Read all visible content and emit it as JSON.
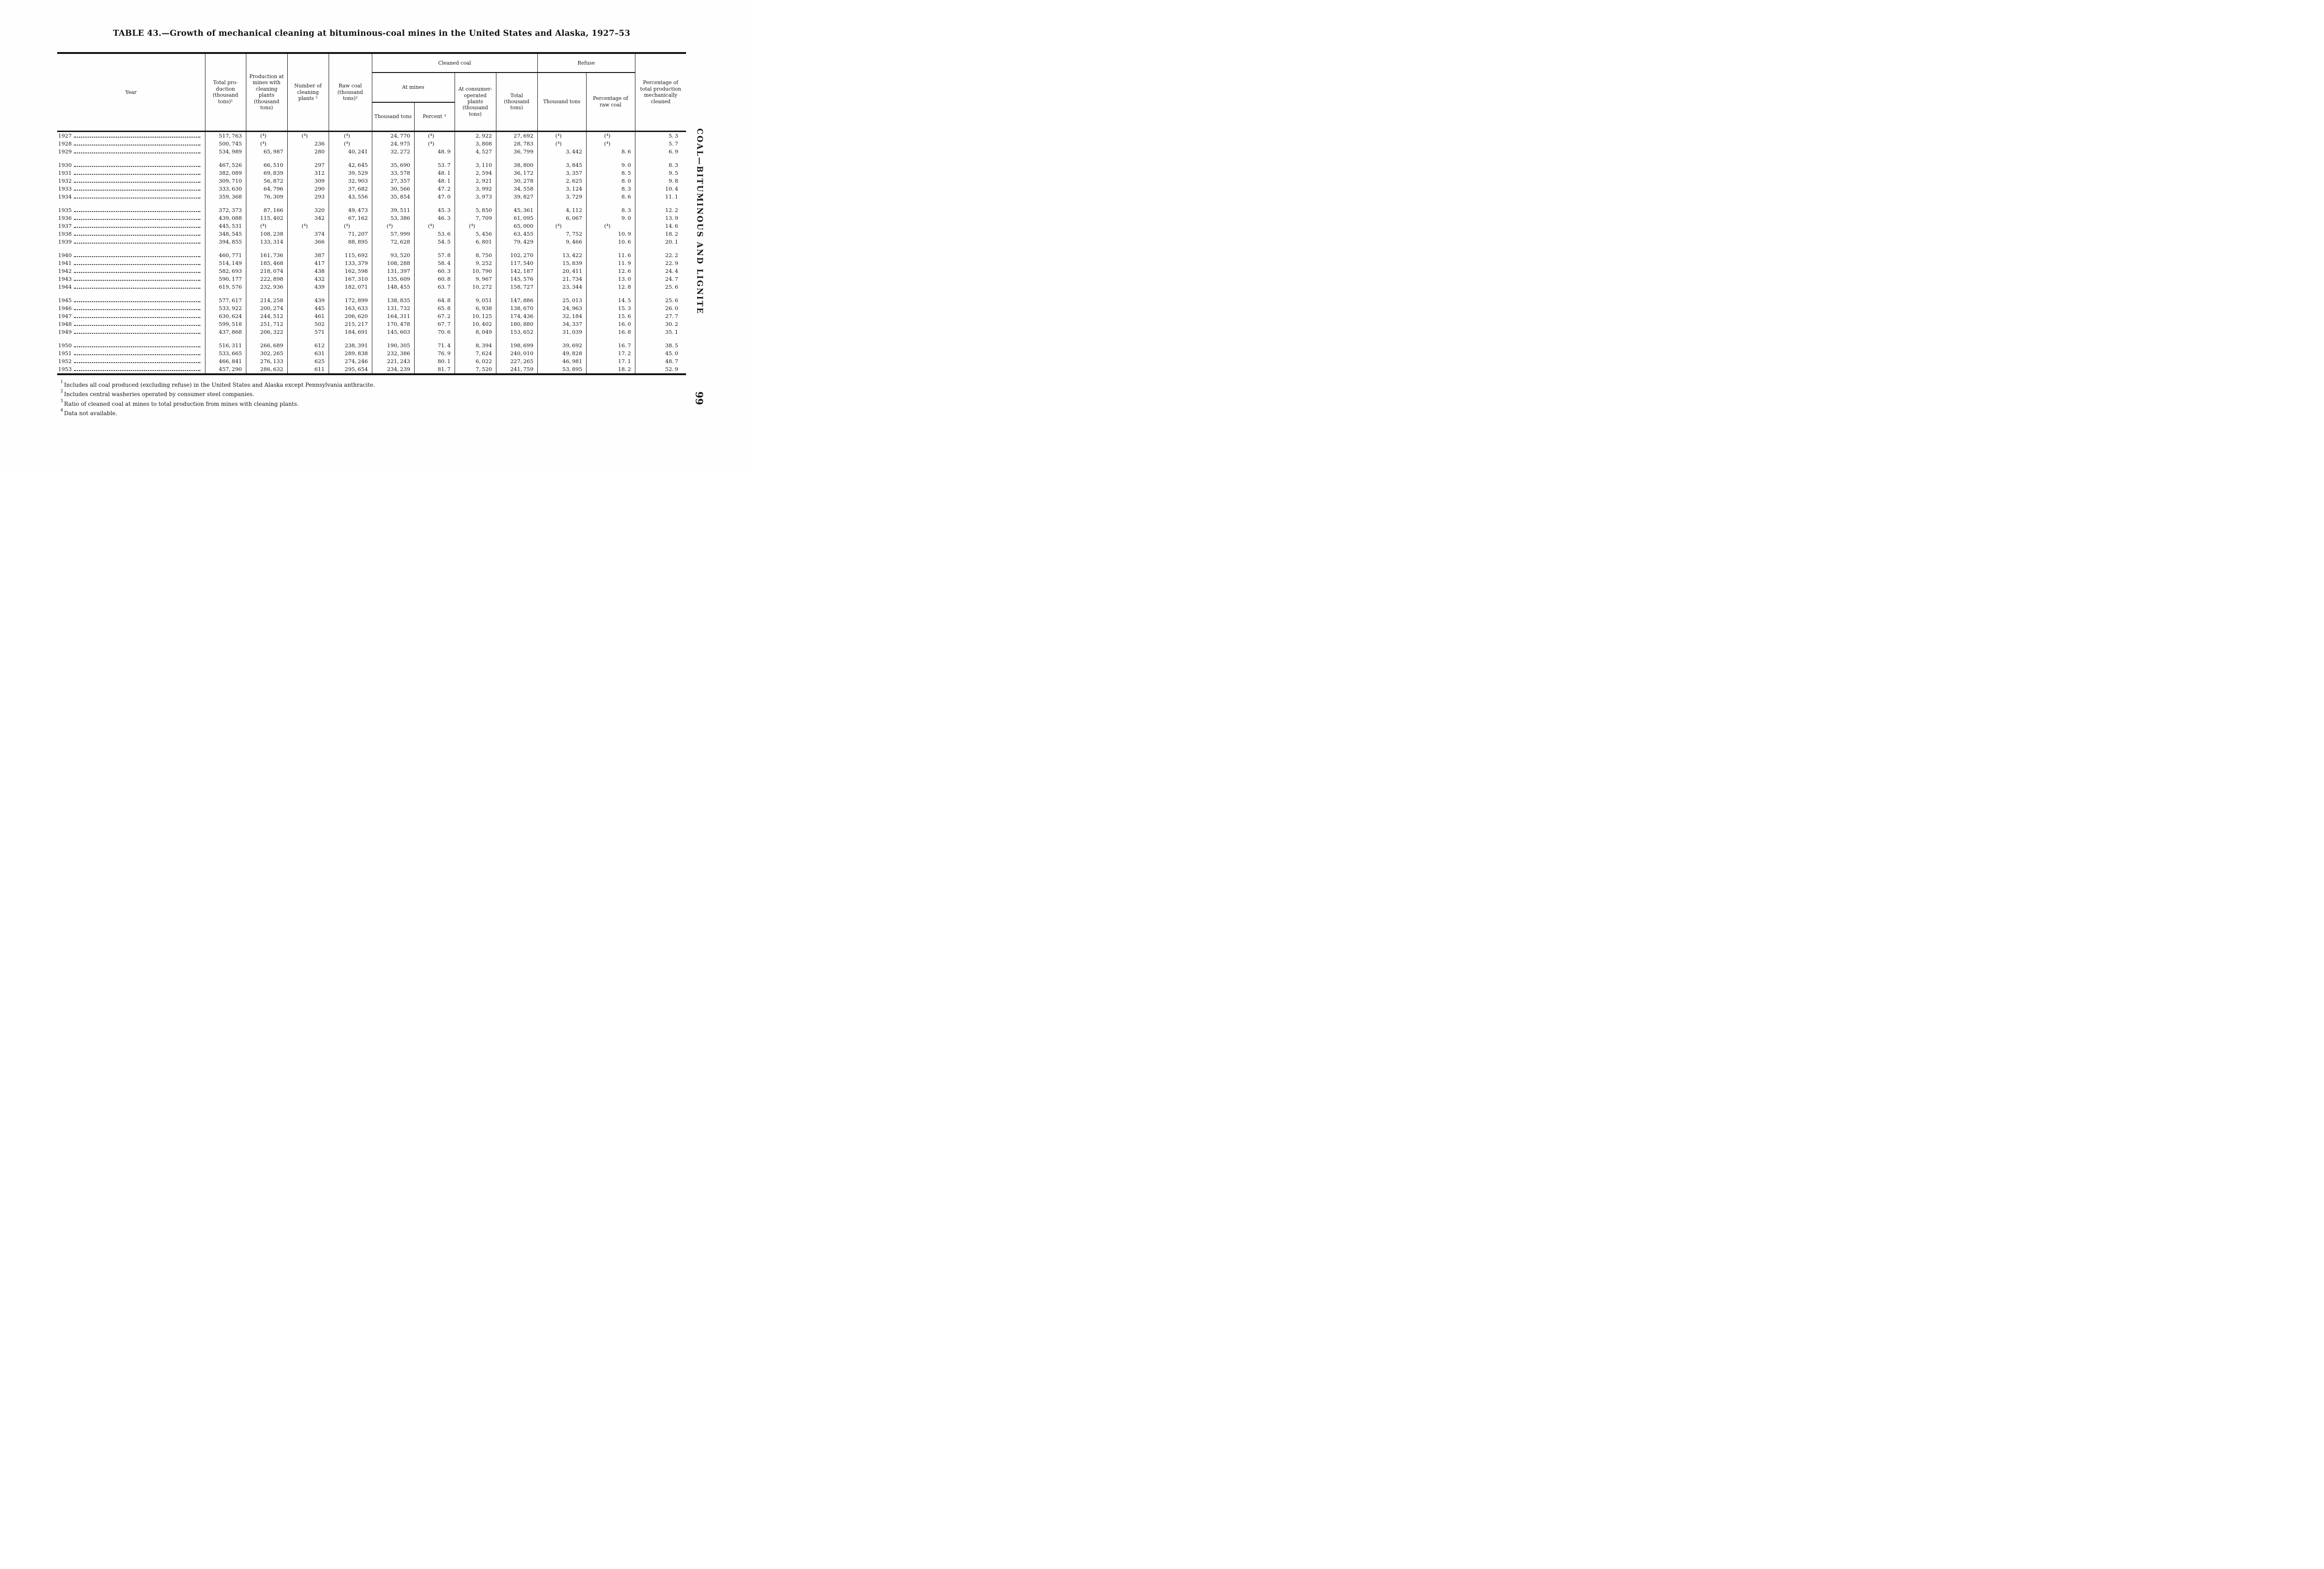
{
  "page": {
    "title": "TABLE 43.—Growth of mechanical cleaning at bituminous-coal mines in the United States and Alaska, 1927–53",
    "side_label": "COAL—BITUMINOUS AND LIGNITE",
    "page_number": "99"
  },
  "table": {
    "headers": {
      "year": "Year",
      "total_production": "Total pro­duction (thousand tons)¹",
      "production_at_mines": "Production at mines with clean­ing plants (thousand tons)",
      "number_of_plants": "Number of cleaning plants ²",
      "raw_coal": "Raw coal (thousand tons)²",
      "cleaned_coal": "Cleaned coal",
      "at_mines": "At mines",
      "at_mines_thousand_tons": "Thousand tons",
      "at_mines_percent": "Percent ³",
      "consumer_plants": "At con­sumer-operated plants (thousand tons)",
      "cleaned_total": "Total (thousand tons)",
      "refuse": "Refuse",
      "refuse_thousand_tons": "Thousand tons",
      "refuse_pct_raw": "Percentage of raw coal",
      "pct_total": "Percentage of total production mechanic­ally cleaned"
    },
    "groups": [
      [
        [
          "1927",
          "517,763",
          "(⁴)",
          "(⁴)",
          "(⁴)",
          "24,770",
          "(⁴)",
          "2,922",
          "27,692",
          "(⁴)",
          "(⁴)",
          "5.3"
        ],
        [
          "1928",
          "500,745",
          "(⁴)",
          "236",
          "(⁴)",
          "24,975",
          "(⁴)",
          "3,808",
          "28,783",
          "(⁴)",
          "(⁴)",
          "5.7"
        ],
        [
          "1929",
          "534,989",
          "65,987",
          "280",
          "40,241",
          "32,272",
          "48.9",
          "4,527",
          "36,799",
          "3,442",
          "8.6",
          "6.9"
        ]
      ],
      [
        [
          "1930",
          "467,526",
          "66,510",
          "297",
          "42,645",
          "35,690",
          "53.7",
          "3,110",
          "38,800",
          "3,845",
          "9.0",
          "8.3"
        ],
        [
          "1931",
          "382,089",
          "69,839",
          "312",
          "39,529",
          "33,578",
          "48.1",
          "2,594",
          "36,172",
          "3,357",
          "8.5",
          "9.5"
        ],
        [
          "1932",
          "309,710",
          "56,872",
          "309",
          "32,903",
          "27,357",
          "48.1",
          "2,921",
          "30,278",
          "2,625",
          "8.0",
          "9.8"
        ],
        [
          "1933",
          "333,630",
          "64,796",
          "290",
          "37,682",
          "30,566",
          "47.2",
          "3,992",
          "34,558",
          "3,124",
          "8.3",
          "10.4"
        ],
        [
          "1934",
          "359,368",
          "76,309",
          "293",
          "43,556",
          "35,854",
          "47.0",
          "3,973",
          "39,827",
          "3,729",
          "8.6",
          "11.1"
        ]
      ],
      [
        [
          "1935",
          "372,373",
          "87,166",
          "320",
          "49,473",
          "39,511",
          "45.3",
          "5,850",
          "45,361",
          "4,112",
          "8.3",
          "12.2"
        ],
        [
          "1936",
          "439,088",
          "115,402",
          "342",
          "67,162",
          "53,386",
          "46.3",
          "7,709",
          "61,095",
          "6,067",
          "9.0",
          "13.9"
        ],
        [
          "1937",
          "445,531",
          "(⁴)",
          "(⁴)",
          "(⁴)",
          "(⁴)",
          "(⁴)",
          "(⁴)",
          "65,000",
          "(⁴)",
          "(⁴)",
          "14.6"
        ],
        [
          "1938",
          "348,545",
          "108,238",
          "374",
          "71,207",
          "57,999",
          "53.6",
          "5,456",
          "63,455",
          "7,752",
          "10.9",
          "18.2"
        ],
        [
          "1939",
          "394,855",
          "133,314",
          "366",
          "88,895",
          "72,628",
          "54.5",
          "6,801",
          "79,429",
          "9,466",
          "10.6",
          "20.1"
        ]
      ],
      [
        [
          "1940",
          "460,771",
          "161,736",
          "387",
          "115,692",
          "93,520",
          "57.8",
          "8,750",
          "102,270",
          "13,422",
          "11.6",
          "22.2"
        ],
        [
          "1941",
          "514,149",
          "185,468",
          "417",
          "133,379",
          "108,288",
          "58.4",
          "9,252",
          "117,540",
          "15,839",
          "11.9",
          "22.9"
        ],
        [
          "1942",
          "582,693",
          "218,074",
          "438",
          "162,598",
          "131,397",
          "60.3",
          "10,790",
          "142,187",
          "20,411",
          "12.6",
          "24.4"
        ],
        [
          "1943",
          "590,177",
          "222,898",
          "432",
          "167,310",
          "135,609",
          "60.8",
          "9,967",
          "145,576",
          "21,734",
          "13.0",
          "24.7"
        ],
        [
          "1944",
          "619,576",
          "232,936",
          "439",
          "182,071",
          "148,455",
          "63.7",
          "10,272",
          "158,727",
          "23,344",
          "12.8",
          "25.6"
        ]
      ],
      [
        [
          "1945",
          "577,617",
          "214,258",
          "439",
          "172,899",
          "138,835",
          "64.8",
          "9,051",
          "147,886",
          "25,013",
          "14.5",
          "25.6"
        ],
        [
          "1946",
          "533,922",
          "200,274",
          "445",
          "163,633",
          "131,732",
          "65.8",
          "6,938",
          "138,670",
          "24,963",
          "15.3",
          "26.0"
        ],
        [
          "1947",
          "630,624",
          "244,512",
          "461",
          "206,620",
          "164,311",
          "67.2",
          "10,125",
          "174,436",
          "32,184",
          "15.6",
          "27.7"
        ],
        [
          "1948",
          "599,518",
          "251,712",
          "502",
          "215,217",
          "170,478",
          "67.7",
          "10,402",
          "180,880",
          "34,337",
          "16.0",
          "30.2"
        ],
        [
          "1949",
          "437,868",
          "206,322",
          "571",
          "184,691",
          "145,603",
          "70.6",
          "8,049",
          "153,652",
          "31,039",
          "16.8",
          "35.1"
        ]
      ],
      [
        [
          "1950",
          "516,311",
          "266,689",
          "612",
          "238,391",
          "190,305",
          "71.4",
          "8,394",
          "198,699",
          "39,692",
          "16.7",
          "38.5"
        ],
        [
          "1951",
          "533,665",
          "302,265",
          "631",
          "289,838",
          "232,386",
          "76.9",
          "7,624",
          "240,010",
          "49,828",
          "17.2",
          "45.0"
        ],
        [
          "1952",
          "466,841",
          "276,133",
          "625",
          "274,246",
          "221,243",
          "80.1",
          "6,022",
          "227,265",
          "46,981",
          "17.1",
          "48.7"
        ],
        [
          "1953",
          "457,290",
          "286,632",
          "611",
          "295,654",
          "234,239",
          "81.7",
          "7,520",
          "241,759",
          "53,895",
          "18.2",
          "52.9"
        ]
      ]
    ]
  },
  "footnotes": [
    {
      "marker": "1",
      "text": "Includes all coal produced (excluding refuse) in the United States and Alaska except Pennsylvania anthracite."
    },
    {
      "marker": "2",
      "text": "Includes central washeries operated by consumer steel companies."
    },
    {
      "marker": "3",
      "text": "Ratio of cleaned coal at mines to total production from mines with cleaning plants."
    },
    {
      "marker": "4",
      "text": "Data not available."
    }
  ]
}
